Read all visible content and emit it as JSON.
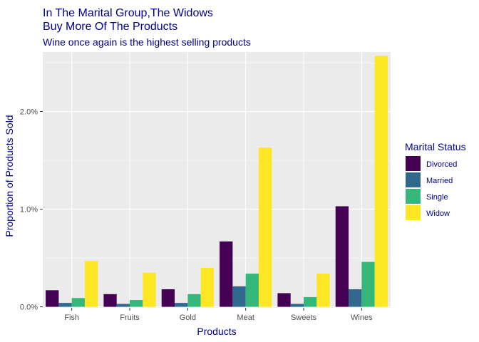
{
  "chart_data": {
    "type": "bar",
    "title_line1": "In The Marital Group,The Widows",
    "title_line2": "Buy More Of The Products",
    "subtitle": "Wine once again is the highest selling products",
    "xlabel": "Products",
    "ylabel": "Proportion of Products Sold",
    "categories": [
      "Fish",
      "Fruits",
      "Gold",
      "Meat",
      "Sweets",
      "Wines"
    ],
    "ylim": [
      -0.0001,
      0.0261
    ],
    "yticks": [
      0,
      0.01,
      0.02
    ],
    "ytick_labels": [
      "0.0%",
      "1.0%",
      "2.0%"
    ],
    "grid": true,
    "legend_title": "Marital Status",
    "legend_position": "right",
    "series": [
      {
        "name": "Divorced",
        "color": "#440154",
        "values": [
          0.0017,
          0.0013,
          0.0018,
          0.0067,
          0.0014,
          0.0103
        ]
      },
      {
        "name": "Married",
        "color": "#31688E",
        "values": [
          0.0004,
          0.0003,
          0.0004,
          0.0021,
          0.0003,
          0.0018
        ]
      },
      {
        "name": "Single",
        "color": "#35B779",
        "values": [
          0.0009,
          0.0007,
          0.0013,
          0.0034,
          0.001,
          0.0046
        ]
      },
      {
        "name": "Widow",
        "color": "#FDE725",
        "values": [
          0.0047,
          0.0035,
          0.004,
          0.0163,
          0.0034,
          0.0257
        ]
      }
    ]
  }
}
